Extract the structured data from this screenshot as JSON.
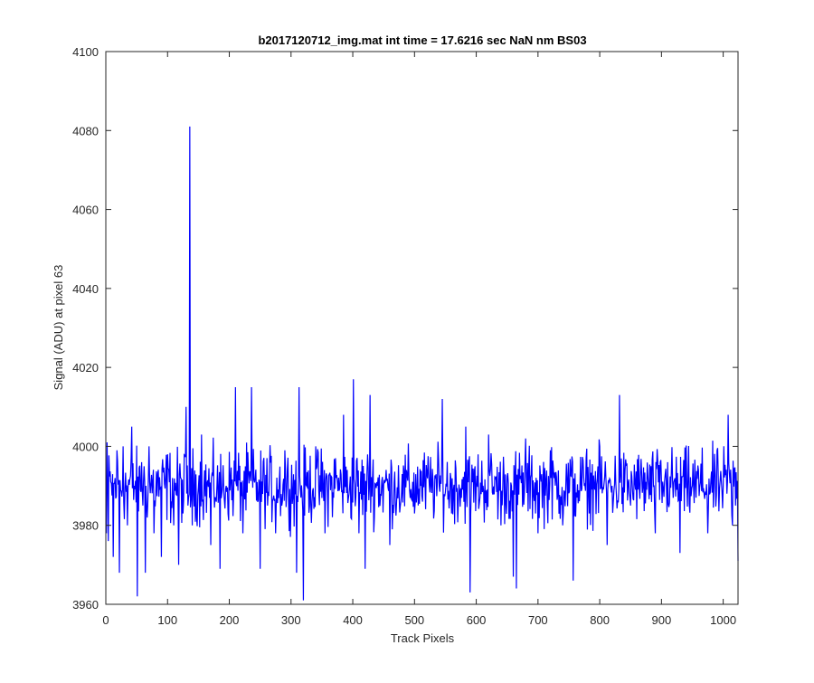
{
  "chart_data": {
    "type": "line",
    "title": "b2017120712_img.mat int time = 17.6216 sec  NaN nm BS03",
    "xlabel": "Track Pixels",
    "ylabel": "Signal (ADU) at pixel 63",
    "xlim": [
      0,
      1024
    ],
    "ylim": [
      3960,
      4100
    ],
    "xticks": [
      0,
      100,
      200,
      300,
      400,
      500,
      600,
      700,
      800,
      900,
      1000
    ],
    "yticks": [
      3960,
      3980,
      4000,
      4020,
      4040,
      4060,
      4080,
      4100
    ],
    "xtick_labels": [
      "0",
      "100",
      "200",
      "300",
      "400",
      "500",
      "600",
      "700",
      "800",
      "900",
      "1000"
    ],
    "ytick_labels": [
      "3960",
      "3980",
      "4000",
      "4020",
      "4040",
      "4060",
      "4080",
      "4100"
    ],
    "grid": false,
    "line_color": "#0000ff",
    "series": [
      {
        "x_start": 1,
        "x_step": 1,
        "count": 1024,
        "baseline": 3990,
        "noise_amplitude": 7,
        "points": [
          [
            1,
            3978
          ],
          [
            2,
            4001
          ],
          [
            4,
            3976
          ],
          [
            8,
            3991
          ],
          [
            12,
            3972
          ],
          [
            18,
            3999
          ],
          [
            22,
            3968
          ],
          [
            28,
            4000
          ],
          [
            35,
            3980
          ],
          [
            42,
            4005
          ],
          [
            51,
            3962
          ],
          [
            58,
            3996
          ],
          [
            64,
            3968
          ],
          [
            70,
            4000
          ],
          [
            78,
            3978
          ],
          [
            90,
            3972
          ],
          [
            100,
            3998
          ],
          [
            110,
            3980
          ],
          [
            118,
            3970
          ],
          [
            125,
            3983
          ],
          [
            130,
            4010
          ],
          [
            133,
            3985
          ],
          [
            136,
            4081
          ],
          [
            138,
            3987
          ],
          [
            140,
            3980
          ],
          [
            155,
            4003
          ],
          [
            170,
            3975
          ],
          [
            180,
            3990
          ],
          [
            185,
            3969
          ],
          [
            195,
            3990
          ],
          [
            210,
            4015
          ],
          [
            222,
            3978
          ],
          [
            236,
            4015
          ],
          [
            250,
            3969
          ],
          [
            262,
            3985
          ],
          [
            275,
            3978
          ],
          [
            290,
            3999
          ],
          [
            309,
            3968
          ],
          [
            313,
            4015
          ],
          [
            320,
            3961
          ],
          [
            325,
            3990
          ],
          [
            340,
            4000
          ],
          [
            355,
            3978
          ],
          [
            372,
            3997
          ],
          [
            385,
            4008
          ],
          [
            395,
            3990
          ],
          [
            401,
            4017
          ],
          [
            410,
            3978
          ],
          [
            420,
            3969
          ],
          [
            428,
            4013
          ],
          [
            440,
            3990
          ],
          [
            460,
            3975
          ],
          [
            480,
            3993
          ],
          [
            500,
            3983
          ],
          [
            510,
            3990
          ],
          [
            545,
            4012
          ],
          [
            560,
            3983
          ],
          [
            583,
            4005
          ],
          [
            590,
            3963
          ],
          [
            600,
            3990
          ],
          [
            620,
            4003
          ],
          [
            640,
            3980
          ],
          [
            657,
            3990
          ],
          [
            660,
            3967
          ],
          [
            665,
            3964
          ],
          [
            680,
            4002
          ],
          [
            700,
            3978
          ],
          [
            720,
            3999
          ],
          [
            740,
            3980
          ],
          [
            757,
            3966
          ],
          [
            775,
            3990
          ],
          [
            800,
            4000
          ],
          [
            812,
            3975
          ],
          [
            820,
            3990
          ],
          [
            832,
            4013
          ],
          [
            850,
            3985
          ],
          [
            870,
            3990
          ],
          [
            890,
            3978
          ],
          [
            910,
            3996
          ],
          [
            930,
            3973
          ],
          [
            950,
            3990
          ],
          [
            975,
            3978
          ],
          [
            1000,
            3990
          ],
          [
            1008,
            4008
          ],
          [
            1015,
            3980
          ],
          [
            1020,
            3985
          ],
          [
            1024,
            3971
          ]
        ]
      }
    ]
  }
}
